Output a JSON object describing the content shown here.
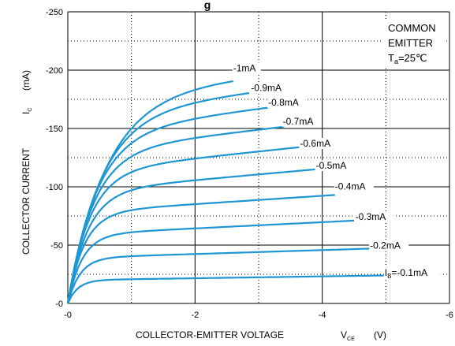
{
  "chart_data": {
    "type": "line",
    "title_fragment": "g",
    "xlabel": "COLLECTOR-EMITTER VOLTAGE",
    "xlabel_symbol": "V",
    "xlabel_sub": "CE",
    "xlabel_unit": "(V)",
    "ylabel": "COLLECTOR CURRENT",
    "ylabel_symbol": "I",
    "ylabel_sub": "C",
    "ylabel_unit": "(mA)",
    "xlim": [
      0,
      -6
    ],
    "ylim": [
      0,
      -250
    ],
    "x_ticks": [
      {
        "value": 0,
        "label": "-0"
      },
      {
        "value": -2,
        "label": "-2"
      },
      {
        "value": -4,
        "label": "-4"
      },
      {
        "value": -6,
        "label": "-6"
      }
    ],
    "y_ticks": [
      {
        "value": 0,
        "label": "-0"
      },
      {
        "value": -50,
        "label": "-50"
      },
      {
        "value": -100,
        "label": "-100"
      },
      {
        "value": -150,
        "label": "-150"
      },
      {
        "value": -200,
        "label": "-200"
      },
      {
        "value": -250,
        "label": "-250"
      }
    ],
    "grid": {
      "major_x": [
        -2,
        -4
      ],
      "major_y": [
        -50,
        -100,
        -150,
        -200
      ],
      "minor_x": [
        -1,
        -3,
        -5
      ],
      "minor_y": [
        -25,
        -75,
        -125,
        -175,
        -225
      ]
    },
    "line_color": "#1e96d2",
    "conditions": {
      "line1": "COMMON",
      "line2": "EMITTER",
      "ta_symbol": "T",
      "ta_sub": "a",
      "ta_value": "=25℃"
    },
    "series": [
      {
        "label": "=-0.1mA",
        "label_prefix": "I",
        "label_sub": "B",
        "ib": -0.1,
        "sat": -20,
        "vsat": -0.45,
        "vmax": -5.0,
        "iend": -24.0,
        "label_x": -4.98,
        "label_y": -23.5
      },
      {
        "label": "-0.2mA",
        "ib": -0.2,
        "sat": -39,
        "vsat": -0.55,
        "vmax": -4.75,
        "iend": -47.0,
        "label_x": -4.75,
        "label_y": -47
      },
      {
        "label": "-0.3mA",
        "ib": -0.3,
        "sat": -59,
        "vsat": -0.65,
        "vmax": -4.5,
        "iend": -71.0,
        "label_x": -4.52,
        "label_y": -71.5
      },
      {
        "label": "-0.4mA",
        "ib": -0.4,
        "sat": -78,
        "vsat": -0.75,
        "vmax": -4.2,
        "iend": -93.0,
        "label_x": -4.2,
        "label_y": -97.5
      },
      {
        "label": "-0.5mA",
        "ib": -0.5,
        "sat": -96,
        "vsat": -0.9,
        "vmax": -3.9,
        "iend": -115.0,
        "label_x": -3.9,
        "label_y": -115.5
      },
      {
        "label": "-0.6mA",
        "ib": -0.6,
        "sat": -113,
        "vsat": -1.0,
        "vmax": -3.65,
        "iend": -134.0,
        "label_x": -3.65,
        "label_y": -134.5
      },
      {
        "label": "-0.7mA",
        "ib": -0.7,
        "sat": -130,
        "vsat": -1.15,
        "vmax": -3.4,
        "iend": -151.5,
        "label_x": -3.38,
        "label_y": -153.5
      },
      {
        "label": "-0.8mA",
        "ib": -0.8,
        "sat": -146,
        "vsat": -1.3,
        "vmax": -3.15,
        "iend": -168.0,
        "label_x": -3.15,
        "label_y": -169.5
      },
      {
        "label": "-0.9mA",
        "ib": -0.9,
        "sat": -162,
        "vsat": -1.5,
        "vmax": -2.85,
        "iend": -181.0,
        "label_x": -2.88,
        "label_y": -182
      },
      {
        "label": "-1mA",
        "ib": -1.0,
        "sat": -178,
        "vsat": -1.75,
        "vmax": -2.6,
        "iend": -193.0,
        "label_x": -2.6,
        "label_y": -199
      }
    ]
  }
}
